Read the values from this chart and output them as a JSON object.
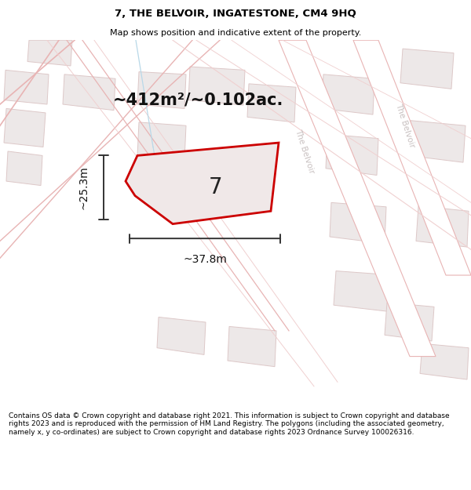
{
  "title": "7, THE BELVOIR, INGATESTONE, CM4 9HQ",
  "subtitle": "Map shows position and indicative extent of the property.",
  "footer": "Contains OS data © Crown copyright and database right 2021. This information is subject to Crown copyright and database rights 2023 and is reproduced with the permission of HM Land Registry. The polygons (including the associated geometry, namely x, y co-ordinates) are subject to Crown copyright and database rights 2023 Ordnance Survey 100026316.",
  "area_label": "~412m²/~0.102ac.",
  "width_label": "~37.8m",
  "height_label": "~25.3m",
  "property_number": "7",
  "map_bg": "#f9f6f6",
  "building_fill": "#ede8e8",
  "building_stroke": "#ddc8c8",
  "road_fill": "#ffffff",
  "road_stroke": "#e8b4b4",
  "pink_line": "#e8b4b4",
  "light_pink": "#f0d0d0",
  "plot_fill": "#f0e8e8",
  "plot_stroke": "#cc0000",
  "dim_color": "#333333",
  "road_label_color": "#c8c0c0",
  "blue_line": "#b8d8e8",
  "title_fontsize": 9.5,
  "subtitle_fontsize": 8,
  "footer_fontsize": 6.5,
  "area_fontsize": 15,
  "dim_fontsize": 10,
  "num_fontsize": 20
}
